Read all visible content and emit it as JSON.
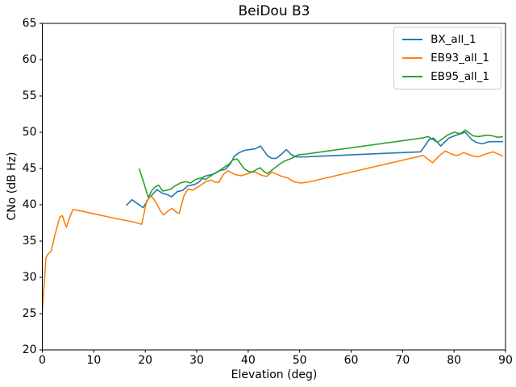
{
  "chart_data": {
    "type": "line",
    "title": "BeiDou B3",
    "xlabel": "Elevation (deg)",
    "ylabel": "CNo (dB Hz)",
    "xlim": [
      0,
      90
    ],
    "ylim": [
      20,
      65
    ],
    "x_ticks": [
      0,
      10,
      20,
      30,
      40,
      50,
      60,
      70,
      80,
      90
    ],
    "y_ticks": [
      20,
      25,
      30,
      35,
      40,
      45,
      50,
      55,
      60,
      65
    ],
    "grid": false,
    "legend_position": "upper right",
    "series": [
      {
        "name": "BX_all_1",
        "color": "#1f77b4",
        "points": [
          [
            16.3,
            39.9
          ],
          [
            17.4,
            40.7
          ],
          [
            18.4,
            40.2
          ],
          [
            19.6,
            39.6
          ],
          [
            20.7,
            40.9
          ],
          [
            21.5,
            41.5
          ],
          [
            22.3,
            42.1
          ],
          [
            23.3,
            41.6
          ],
          [
            24.3,
            41.4
          ],
          [
            25.1,
            41.1
          ],
          [
            26.2,
            41.8
          ],
          [
            27.3,
            42.0
          ],
          [
            28.2,
            42.6
          ],
          [
            29.6,
            42.8
          ],
          [
            30.4,
            43.1
          ],
          [
            31.4,
            43.9
          ],
          [
            32.5,
            44.1
          ],
          [
            33.5,
            44.3
          ],
          [
            34.5,
            44.7
          ],
          [
            35.6,
            44.9
          ],
          [
            36.6,
            45.7
          ],
          [
            37.3,
            46.7
          ],
          [
            38.3,
            47.2
          ],
          [
            39.3,
            47.5
          ],
          [
            40.3,
            47.6
          ],
          [
            41.3,
            47.7
          ],
          [
            42.4,
            48.1
          ],
          [
            43.7,
            46.8
          ],
          [
            44.5,
            46.4
          ],
          [
            45.5,
            46.4
          ],
          [
            46.5,
            47.0
          ],
          [
            47.4,
            47.6
          ],
          [
            48.4,
            46.9
          ],
          [
            49.3,
            46.6
          ],
          [
            51.0,
            46.6
          ],
          [
            73.5,
            47.3
          ],
          [
            75.2,
            49.0
          ],
          [
            76.0,
            49.2
          ],
          [
            77.4,
            48.1
          ],
          [
            79.0,
            49.2
          ],
          [
            80.4,
            49.6
          ],
          [
            81.3,
            49.8
          ],
          [
            82.2,
            50.0
          ],
          [
            83.4,
            49.0
          ],
          [
            84.3,
            48.6
          ],
          [
            85.5,
            48.4
          ],
          [
            86.8,
            48.7
          ],
          [
            88.0,
            48.7
          ],
          [
            89.5,
            48.7
          ]
        ]
      },
      {
        "name": "EB93_all_1",
        "color": "#ff7f0e",
        "points": [
          [
            0,
            25.3
          ],
          [
            0.7,
            32.7
          ],
          [
            1.1,
            33.2
          ],
          [
            1.7,
            33.6
          ],
          [
            2.5,
            36.0
          ],
          [
            3.4,
            38.3
          ],
          [
            3.9,
            38.5
          ],
          [
            4.3,
            37.6
          ],
          [
            4.7,
            36.9
          ],
          [
            5.3,
            38.2
          ],
          [
            5.9,
            39.3
          ],
          [
            6.5,
            39.3
          ],
          [
            15.0,
            38.0
          ],
          [
            18.0,
            37.6
          ],
          [
            19.3,
            37.3
          ],
          [
            20.3,
            40.6
          ],
          [
            21.2,
            41.2
          ],
          [
            22.2,
            40.2
          ],
          [
            23.0,
            39.1
          ],
          [
            23.6,
            38.6
          ],
          [
            24.5,
            39.2
          ],
          [
            25.2,
            39.5
          ],
          [
            26.0,
            39.0
          ],
          [
            26.6,
            38.8
          ],
          [
            27.5,
            41.2
          ],
          [
            28.3,
            42.2
          ],
          [
            29.2,
            42.0
          ],
          [
            30.1,
            42.4
          ],
          [
            31.0,
            42.8
          ],
          [
            31.8,
            43.2
          ],
          [
            32.8,
            43.4
          ],
          [
            33.6,
            43.1
          ],
          [
            34.3,
            43.1
          ],
          [
            35.2,
            44.2
          ],
          [
            36.1,
            44.7
          ],
          [
            37.3,
            44.2
          ],
          [
            38.6,
            44.0
          ],
          [
            40.0,
            44.3
          ],
          [
            41.0,
            44.6
          ],
          [
            42.5,
            44.1
          ],
          [
            43.6,
            43.9
          ],
          [
            44.6,
            44.5
          ],
          [
            45.6,
            44.2
          ],
          [
            46.6,
            43.9
          ],
          [
            47.7,
            43.7
          ],
          [
            48.8,
            43.2
          ],
          [
            50.1,
            43.0
          ],
          [
            51.5,
            43.1
          ],
          [
            74.0,
            46.8
          ],
          [
            75.8,
            45.8
          ],
          [
            77.2,
            46.8
          ],
          [
            78.3,
            47.4
          ],
          [
            79.8,
            46.9
          ],
          [
            80.7,
            46.8
          ],
          [
            81.9,
            47.2
          ],
          [
            83.3,
            46.8
          ],
          [
            84.6,
            46.6
          ],
          [
            86.6,
            47.1
          ],
          [
            87.6,
            47.3
          ],
          [
            89.5,
            46.7
          ]
        ]
      },
      {
        "name": "EB95_all_1",
        "color": "#2ca02c",
        "points": [
          [
            18.8,
            45.0
          ],
          [
            19.6,
            43.3
          ],
          [
            20.6,
            41.0
          ],
          [
            21.3,
            42.0
          ],
          [
            22.0,
            42.5
          ],
          [
            22.6,
            42.7
          ],
          [
            23.4,
            41.9
          ],
          [
            24.2,
            42.0
          ],
          [
            25.0,
            42.2
          ],
          [
            25.8,
            42.6
          ],
          [
            26.8,
            43.0
          ],
          [
            27.8,
            43.2
          ],
          [
            28.8,
            43.0
          ],
          [
            29.8,
            43.5
          ],
          [
            30.9,
            43.7
          ],
          [
            31.7,
            43.5
          ],
          [
            32.8,
            44.0
          ],
          [
            33.6,
            44.4
          ],
          [
            34.4,
            44.7
          ],
          [
            35.2,
            45.1
          ],
          [
            36.3,
            45.6
          ],
          [
            37.0,
            46.2
          ],
          [
            37.9,
            46.3
          ],
          [
            39.2,
            45.0
          ],
          [
            40.0,
            44.6
          ],
          [
            40.8,
            44.5
          ],
          [
            41.7,
            44.9
          ],
          [
            42.3,
            45.1
          ],
          [
            43.2,
            44.5
          ],
          [
            43.8,
            44.3
          ],
          [
            45.0,
            45.0
          ],
          [
            46.1,
            45.6
          ],
          [
            47.0,
            46.0
          ],
          [
            48.4,
            46.4
          ],
          [
            49.7,
            46.9
          ],
          [
            51.3,
            47.0
          ],
          [
            73.8,
            49.2
          ],
          [
            75.0,
            49.4
          ],
          [
            76.8,
            48.6
          ],
          [
            78.7,
            49.6
          ],
          [
            80.0,
            50.0
          ],
          [
            81.2,
            49.8
          ],
          [
            82.2,
            50.3
          ],
          [
            83.7,
            49.5
          ],
          [
            84.7,
            49.4
          ],
          [
            86.5,
            49.6
          ],
          [
            87.5,
            49.5
          ],
          [
            88.5,
            49.3
          ],
          [
            89.5,
            49.4
          ]
        ]
      }
    ]
  }
}
